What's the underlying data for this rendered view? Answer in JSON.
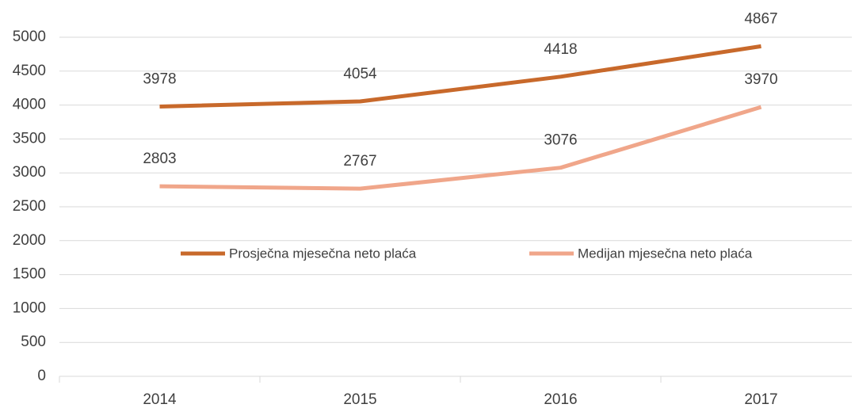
{
  "chart_data": {
    "type": "line",
    "categories": [
      "2014",
      "2015",
      "2016",
      "2017"
    ],
    "series": [
      {
        "name": "Prosječna mjesečna neto plaća",
        "color": "#c8692b",
        "values": [
          3978,
          4054,
          4418,
          4867
        ]
      },
      {
        "name": "Medijan mjesečna neto plaća",
        "color": "#f0a68a",
        "values": [
          2803,
          2767,
          3076,
          3970
        ]
      }
    ],
    "ylim": [
      0,
      5000
    ],
    "yticks": [
      0,
      500,
      1000,
      1500,
      2000,
      2500,
      3000,
      3500,
      4000,
      4500,
      5000
    ],
    "grid": true
  }
}
